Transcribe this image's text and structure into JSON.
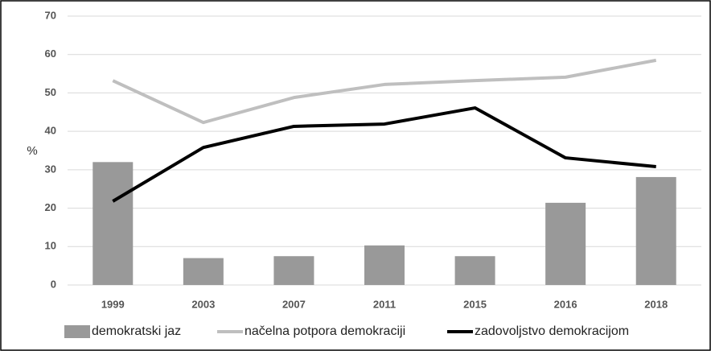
{
  "chart_data": {
    "type": "bar-line",
    "ylabel": "%",
    "categories": [
      "1999",
      "2003",
      "2007",
      "2011",
      "2015",
      "2016",
      "2018"
    ],
    "series": [
      {
        "name": "demokratski jaz",
        "type": "bar",
        "color": "#999999",
        "values": [
          32,
          7,
          7.5,
          10.3,
          7.5,
          21.4,
          28.1
        ]
      },
      {
        "name": "načelna potpora demokraciji",
        "type": "line",
        "color": "#bfbfbf",
        "values": [
          53.2,
          42.3,
          48.8,
          52.2,
          53.2,
          54.1,
          58.5
        ]
      },
      {
        "name": "zadovoljstvo demokracijom",
        "type": "line",
        "color": "#000000",
        "values": [
          21.8,
          35.8,
          41.3,
          41.9,
          46.1,
          33.1,
          30.8
        ]
      }
    ],
    "ylim": [
      0,
      70
    ],
    "yticks": [
      0,
      10,
      20,
      30,
      40,
      50,
      60,
      70
    ],
    "grid": true
  }
}
